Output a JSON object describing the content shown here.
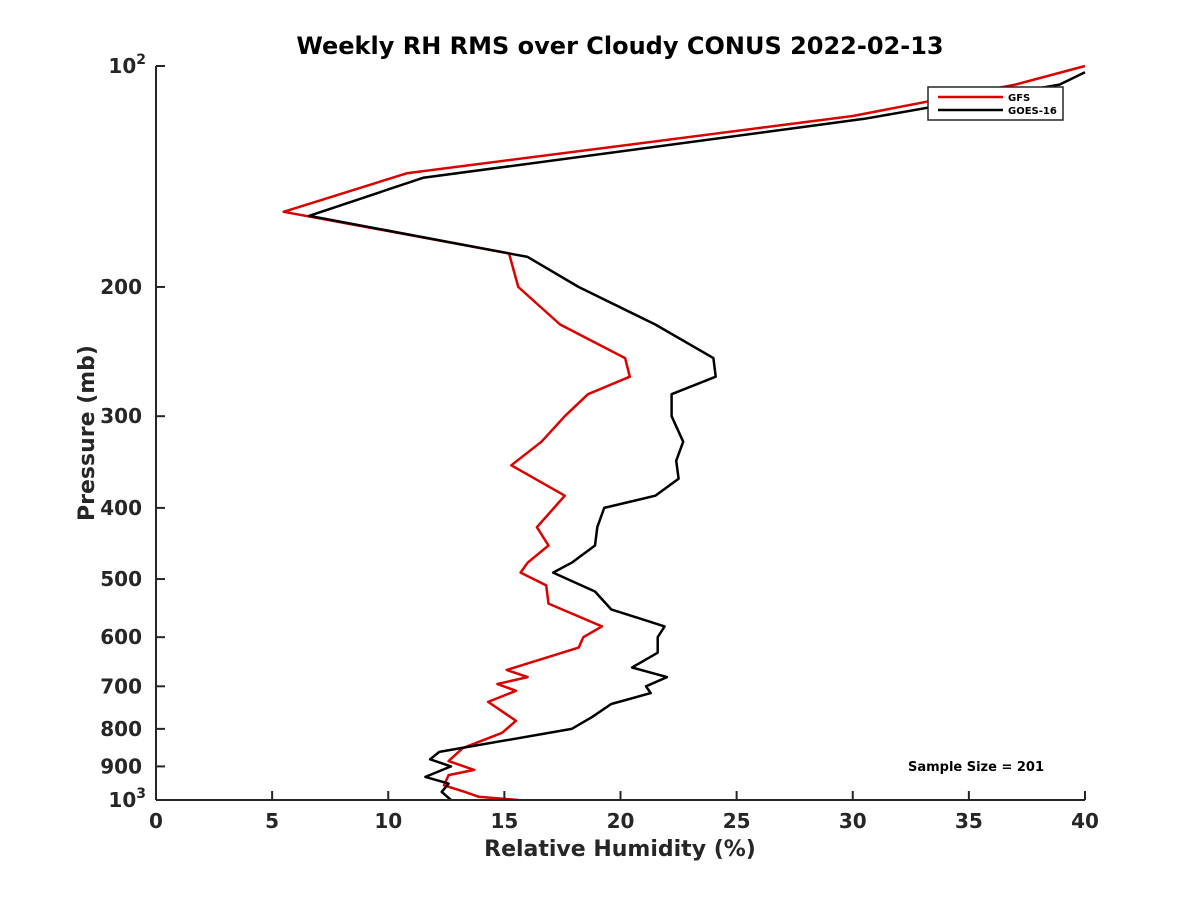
{
  "chart_data": {
    "type": "line",
    "title": "Weekly RH RMS over Cloudy CONUS 2022-02-13",
    "xlabel": "Relative Humidity (%)",
    "ylabel": "Pressure (mb)",
    "xlim": [
      0,
      40
    ],
    "ylim": [
      100,
      1000
    ],
    "y_scale": "log",
    "y_reversed": true,
    "x_ticks": [
      "0",
      "5",
      "10",
      "15",
      "20",
      "25",
      "30",
      "35",
      "40"
    ],
    "y_ticks": [
      {
        "value": 100,
        "label": "10",
        "sup": "2"
      },
      {
        "value": 200,
        "label": "200"
      },
      {
        "value": 300,
        "label": "300"
      },
      {
        "value": 400,
        "label": "400"
      },
      {
        "value": 500,
        "label": "500"
      },
      {
        "value": 600,
        "label": "600"
      },
      {
        "value": 700,
        "label": "700"
      },
      {
        "value": 800,
        "label": "800"
      },
      {
        "value": 900,
        "label": "900"
      },
      {
        "value": 1000,
        "label": "10",
        "sup": "3"
      }
    ],
    "grid": false,
    "legend_position": "top-right",
    "annotation": "Sample Size = 201",
    "series": [
      {
        "name": "GFS",
        "color": "#dd0000",
        "points": [
          [
            40.0,
            100
          ],
          [
            37.0,
            106
          ],
          [
            30.0,
            117
          ],
          [
            10.8,
            140
          ],
          [
            5.5,
            158
          ],
          [
            15.2,
            180
          ],
          [
            15.6,
            200
          ],
          [
            17.4,
            225
          ],
          [
            20.2,
            250
          ],
          [
            20.4,
            265
          ],
          [
            18.6,
            280
          ],
          [
            17.6,
            300
          ],
          [
            16.6,
            325
          ],
          [
            15.3,
            350
          ],
          [
            17.6,
            385
          ],
          [
            16.4,
            425
          ],
          [
            16.9,
            450
          ],
          [
            16.0,
            475
          ],
          [
            15.7,
            490
          ],
          [
            16.8,
            510
          ],
          [
            16.9,
            540
          ],
          [
            19.2,
            580
          ],
          [
            18.4,
            600
          ],
          [
            18.2,
            620
          ],
          [
            15.1,
            665
          ],
          [
            16.0,
            680
          ],
          [
            14.7,
            695
          ],
          [
            15.5,
            710
          ],
          [
            14.3,
            735
          ],
          [
            15.5,
            780
          ],
          [
            14.9,
            810
          ],
          [
            13.2,
            850
          ],
          [
            12.6,
            885
          ],
          [
            13.7,
            910
          ],
          [
            12.6,
            925
          ],
          [
            12.4,
            955
          ],
          [
            13.3,
            975
          ],
          [
            13.9,
            990
          ],
          [
            15.6,
            1000
          ]
        ]
      },
      {
        "name": "GOES-16",
        "color": "#000000",
        "points": [
          [
            40.0,
            102
          ],
          [
            38.9,
            106
          ],
          [
            30.5,
            118
          ],
          [
            11.5,
            142
          ],
          [
            6.6,
            160
          ],
          [
            16.0,
            182
          ],
          [
            18.2,
            200
          ],
          [
            21.5,
            225
          ],
          [
            24.0,
            250
          ],
          [
            24.1,
            265
          ],
          [
            22.2,
            280
          ],
          [
            22.2,
            300
          ],
          [
            22.7,
            325
          ],
          [
            22.4,
            345
          ],
          [
            22.5,
            365
          ],
          [
            21.5,
            385
          ],
          [
            19.3,
            400
          ],
          [
            19.0,
            425
          ],
          [
            18.9,
            450
          ],
          [
            17.9,
            475
          ],
          [
            17.1,
            490
          ],
          [
            18.9,
            520
          ],
          [
            19.6,
            550
          ],
          [
            21.9,
            580
          ],
          [
            21.6,
            600
          ],
          [
            21.6,
            630
          ],
          [
            20.5,
            660
          ],
          [
            22.0,
            680
          ],
          [
            21.1,
            700
          ],
          [
            21.3,
            715
          ],
          [
            19.6,
            740
          ],
          [
            18.8,
            770
          ],
          [
            17.9,
            800
          ],
          [
            12.2,
            860
          ],
          [
            11.8,
            880
          ],
          [
            12.7,
            900
          ],
          [
            11.6,
            930
          ],
          [
            12.6,
            950
          ],
          [
            12.3,
            975
          ],
          [
            12.7,
            1000
          ]
        ]
      }
    ]
  }
}
